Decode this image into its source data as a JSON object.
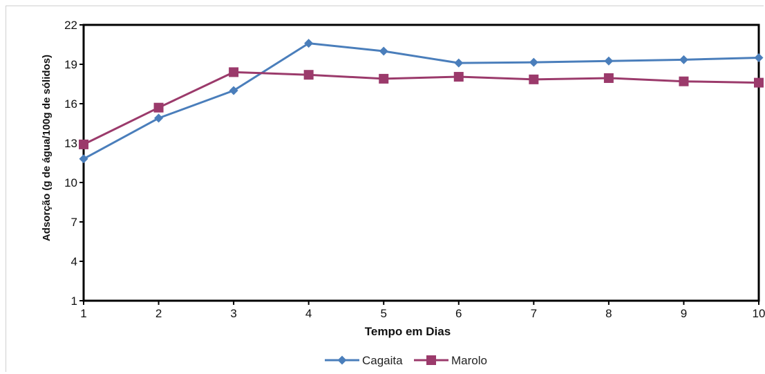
{
  "chart_data": {
    "type": "line",
    "title": "",
    "xlabel": "Tempo em Dias",
    "ylabel": "Adsorção (g de água/100g de sólidos)",
    "x": [
      1,
      2,
      3,
      4,
      5,
      6,
      7,
      8,
      9,
      10
    ],
    "xticks": [
      "1",
      "2",
      "3",
      "4",
      "5",
      "6",
      "7",
      "8",
      "9",
      "10"
    ],
    "yticks": [
      "1",
      "4",
      "7",
      "10",
      "13",
      "16",
      "19",
      "22"
    ],
    "ylim": [
      1,
      22
    ],
    "xlim": [
      1,
      10
    ],
    "grid": false,
    "legend_position": "bottom",
    "series": [
      {
        "name": "Cagaita",
        "color": "#4a7ebb",
        "marker": "diamond",
        "values": [
          11.8,
          14.9,
          17.0,
          20.6,
          20.0,
          19.1,
          19.15,
          19.25,
          19.35,
          19.5
        ]
      },
      {
        "name": "Marolo",
        "color": "#9b3a6b",
        "marker": "square",
        "values": [
          12.9,
          15.7,
          18.4,
          18.2,
          17.9,
          18.05,
          17.85,
          17.95,
          17.7,
          17.6
        ]
      }
    ]
  }
}
